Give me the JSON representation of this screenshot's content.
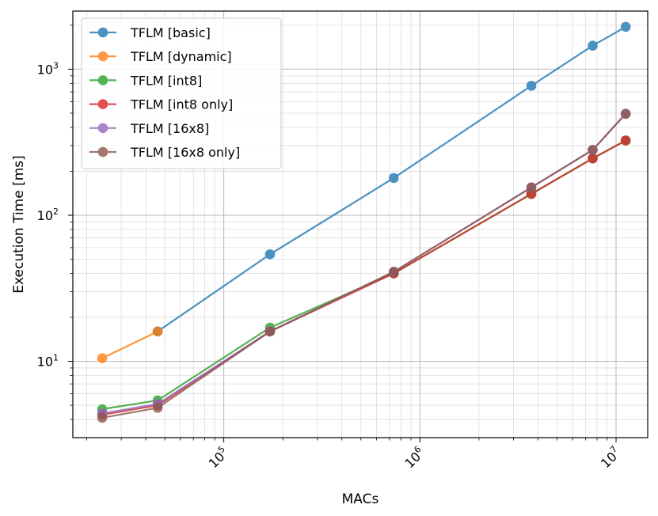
{
  "chart_data": {
    "type": "line",
    "xlabel": "MACs",
    "ylabel": "Execution Time [ms]",
    "xscale": "log",
    "yscale": "log",
    "xlim": [
      17000,
      14500000
    ],
    "ylim": [
      3.0,
      2500
    ],
    "grid": true,
    "legend_position": "top-left",
    "x_ticks": [
      {
        "value": 100000,
        "base": "10",
        "exp": "5"
      },
      {
        "value": 1000000,
        "base": "10",
        "exp": "6"
      },
      {
        "value": 10000000,
        "base": "10",
        "exp": "7"
      }
    ],
    "y_ticks": [
      {
        "value": 10,
        "base": "10",
        "exp": "1"
      },
      {
        "value": 100,
        "base": "10",
        "exp": "2"
      },
      {
        "value": 1000,
        "base": "10",
        "exp": "3"
      }
    ],
    "series": [
      {
        "name": "TFLM [basic]",
        "color": "#1f77b4",
        "x": [
          46000,
          172000,
          736000,
          3700000,
          7600000,
          11200000
        ],
        "y": [
          16,
          54,
          180,
          770,
          1450,
          1950
        ]
      },
      {
        "name": "TFLM [dynamic]",
        "color": "#ff7f0e",
        "x": [
          24000,
          46000
        ],
        "y": [
          10.5,
          16
        ]
      },
      {
        "name": "TFLM [int8]",
        "color": "#2ca02c",
        "x": [
          24000,
          46000,
          172000,
          736000,
          3700000,
          7600000,
          11200000
        ],
        "y": [
          4.7,
          5.4,
          17,
          40,
          140,
          245,
          325
        ]
      },
      {
        "name": "TFLM [int8 only]",
        "color": "#d62728",
        "x": [
          24000,
          46000,
          172000,
          736000,
          3700000,
          7600000,
          11200000
        ],
        "y": [
          4.3,
          5.0,
          16,
          40,
          140,
          245,
          325
        ]
      },
      {
        "name": "TFLM [16x8]",
        "color": "#9467bd",
        "x": [
          24000,
          46000,
          172000,
          736000,
          3700000,
          7600000,
          11200000
        ],
        "y": [
          4.4,
          5.1,
          16,
          41,
          155,
          280,
          495
        ]
      },
      {
        "name": "TFLM [16x8 only]",
        "color": "#8c564b",
        "x": [
          24000,
          46000,
          172000,
          736000,
          3700000,
          7600000,
          11200000
        ],
        "y": [
          4.1,
          4.8,
          16,
          41,
          155,
          280,
          495
        ]
      }
    ]
  }
}
